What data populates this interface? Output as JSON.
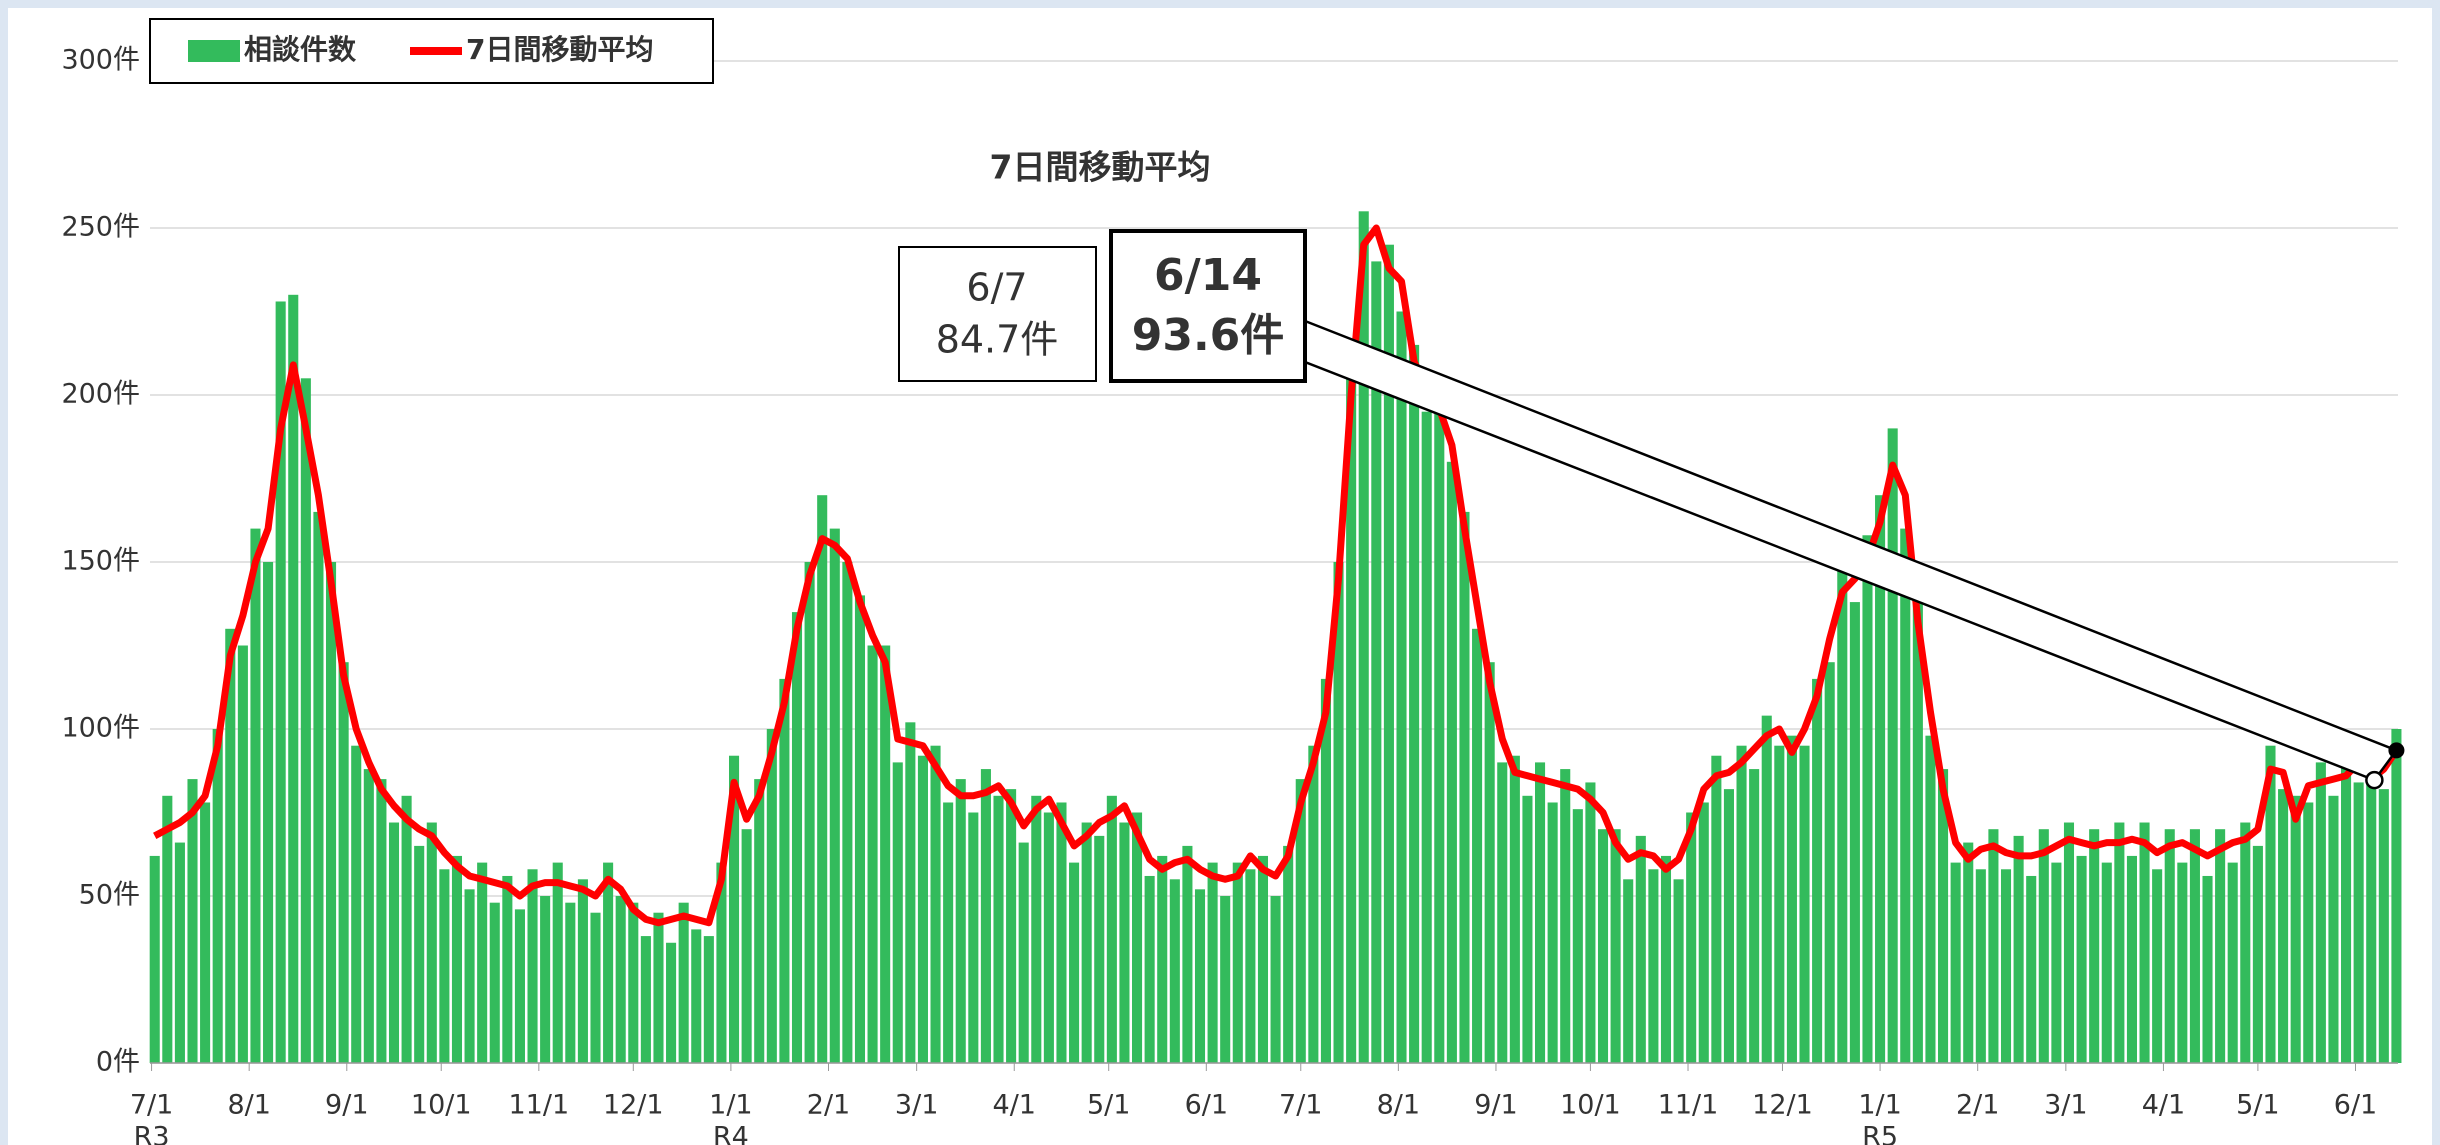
{
  "chart_data": {
    "type": "bar",
    "legend": "top-left",
    "grid": true,
    "x": [
      1,
      5,
      9,
      13,
      17,
      21,
      25,
      29,
      33,
      37,
      41,
      45,
      49,
      53,
      57,
      61,
      65,
      69,
      73,
      77,
      81,
      85,
      89,
      93,
      97,
      101,
      105,
      109,
      113,
      117,
      121,
      125,
      129,
      133,
      137,
      141,
      145,
      149,
      153,
      157,
      161,
      165,
      169,
      173,
      177,
      181,
      185,
      189,
      193,
      197,
      201,
      205,
      209,
      213,
      217,
      221,
      225,
      229,
      233,
      237,
      241,
      245,
      249,
      253,
      257,
      261,
      265,
      269,
      273,
      277,
      281,
      285,
      289,
      293,
      297,
      301,
      305,
      309,
      313,
      317,
      321,
      325,
      329,
      333,
      337,
      341,
      345,
      349,
      353,
      357,
      361,
      365,
      369,
      373,
      377,
      381,
      385,
      389,
      393,
      397,
      401,
      405,
      409,
      413,
      417,
      421,
      425,
      429,
      433,
      437,
      441,
      445,
      449,
      453,
      457,
      461,
      465,
      469,
      473,
      477,
      481,
      485,
      489,
      493,
      497,
      501,
      505,
      509,
      513,
      517,
      521,
      525,
      529,
      533,
      537,
      541,
      545,
      549,
      553,
      557,
      561,
      565,
      569,
      573,
      577,
      581,
      585,
      589,
      593,
      597,
      601,
      605,
      609,
      613,
      617,
      621,
      625,
      629,
      633,
      637,
      641,
      645,
      649,
      653,
      657,
      661,
      665,
      669,
      673,
      677,
      681,
      685,
      689,
      693,
      697,
      701,
      705,
      709,
      713
    ],
    "series": [
      {
        "name": "相談件数",
        "type": "bar",
        "color": "#33bb5c",
        "values": [
          62,
          80,
          66,
          85,
          78,
          100,
          130,
          125,
          160,
          150,
          228,
          230,
          205,
          165,
          150,
          120,
          95,
          88,
          85,
          72,
          80,
          65,
          72,
          58,
          62,
          52,
          60,
          48,
          56,
          46,
          58,
          50,
          60,
          48,
          55,
          45,
          60,
          50,
          48,
          38,
          45,
          36,
          48,
          40,
          38,
          60,
          92,
          70,
          85,
          100,
          115,
          135,
          150,
          170,
          160,
          150,
          140,
          125,
          125,
          90,
          102,
          92,
          95,
          78,
          85,
          75,
          88,
          80,
          82,
          66,
          80,
          75,
          78,
          60,
          72,
          68,
          80,
          72,
          75,
          56,
          62,
          55,
          65,
          52,
          60,
          50,
          60,
          58,
          62,
          50,
          65,
          85,
          95,
          115,
          150,
          215,
          255,
          240,
          245,
          225,
          215,
          195,
          205,
          180,
          165,
          130,
          120,
          90,
          92,
          80,
          90,
          78,
          88,
          76,
          84,
          70,
          70,
          55,
          68,
          58,
          62,
          55,
          75,
          78,
          92,
          82,
          95,
          88,
          104,
          95,
          98,
          95,
          115,
          120,
          148,
          138,
          158,
          170,
          190,
          160,
          138,
          98,
          88,
          60,
          66,
          58,
          70,
          58,
          68,
          56,
          70,
          60,
          72,
          62,
          70,
          60,
          72,
          62,
          72,
          58,
          70,
          60,
          70,
          56,
          70,
          60,
          72,
          65,
          95,
          82,
          80,
          78,
          90,
          80,
          92,
          84,
          95,
          82,
          100
        ]
      },
      {
        "name": "7日間移動平均",
        "type": "line",
        "color": "#ff0000",
        "values": [
          68,
          70,
          72,
          75,
          80,
          95,
          122,
          134,
          150,
          160,
          190,
          209,
          190,
          170,
          144,
          116,
          100,
          90,
          82,
          77,
          73,
          70,
          68,
          63,
          59,
          56,
          55,
          54,
          53,
          50,
          53,
          54,
          54,
          53,
          52,
          50,
          55,
          52,
          46,
          43,
          42,
          43,
          44,
          43,
          42,
          55,
          84,
          73,
          80,
          93,
          108,
          130,
          146,
          157,
          155,
          151,
          138,
          128,
          120,
          97,
          96,
          95,
          89,
          83,
          80,
          80,
          81,
          83,
          78,
          71,
          76,
          79,
          72,
          65,
          68,
          72,
          74,
          77,
          69,
          61,
          58,
          60,
          61,
          58,
          56,
          55,
          56,
          62,
          58,
          56,
          62,
          78,
          90,
          105,
          145,
          200,
          245,
          250,
          238,
          234,
          210,
          202,
          196,
          185,
          160,
          137,
          114,
          97,
          87,
          86,
          85,
          84,
          83,
          82,
          79,
          75,
          66,
          61,
          63,
          62,
          58,
          61,
          70,
          82,
          86,
          87,
          90,
          94,
          98,
          100,
          93,
          100,
          110,
          127,
          141,
          145,
          151,
          162,
          179,
          170,
          132,
          105,
          82,
          66,
          61,
          64,
          65,
          63,
          62,
          62,
          63,
          65,
          67,
          66,
          65,
          66,
          66,
          67,
          66,
          63,
          65,
          66,
          64,
          62,
          64,
          66,
          67,
          70,
          88,
          87,
          73,
          83,
          84,
          85,
          86,
          90,
          85,
          88,
          93.6
        ]
      }
    ],
    "xlim": [
      -0.5,
      713.5
    ],
    "xticks": [
      {
        "value": 0,
        "label": "7/1"
      },
      {
        "value": 31,
        "label": "8/1"
      },
      {
        "value": 62,
        "label": "9/1"
      },
      {
        "value": 92,
        "label": "10/1"
      },
      {
        "value": 123,
        "label": "11/1"
      },
      {
        "value": 153,
        "label": "12/1"
      },
      {
        "value": 184,
        "label": "1/1"
      },
      {
        "value": 215,
        "label": "2/1"
      },
      {
        "value": 243,
        "label": "3/1"
      },
      {
        "value": 274,
        "label": "4/1"
      },
      {
        "value": 304,
        "label": "5/1"
      },
      {
        "value": 335,
        "label": "6/1"
      },
      {
        "value": 365,
        "label": "7/1"
      },
      {
        "value": 396,
        "label": "8/1"
      },
      {
        "value": 427,
        "label": "9/1"
      },
      {
        "value": 457,
        "label": "10/1"
      },
      {
        "value": 488,
        "label": "11/1"
      },
      {
        "value": 518,
        "label": "12/1"
      },
      {
        "value": 549,
        "label": "1/1"
      },
      {
        "value": 580,
        "label": "2/1"
      },
      {
        "value": 608,
        "label": "3/1"
      },
      {
        "value": 639,
        "label": "4/1"
      },
      {
        "value": 669,
        "label": "5/1"
      },
      {
        "value": 700,
        "label": "6/1"
      }
    ],
    "xticks2": [
      {
        "value": 0,
        "label": "R3"
      },
      {
        "value": 184,
        "label": "R4"
      },
      {
        "value": 549,
        "label": "R5"
      }
    ],
    "ylim": [
      0,
      300
    ],
    "yticks": [
      {
        "value": 0,
        "label": "0件"
      },
      {
        "value": 50,
        "label": "50件"
      },
      {
        "value": 100,
        "label": "100件"
      },
      {
        "value": 150,
        "label": "150件"
      },
      {
        "value": 200,
        "label": "200件"
      },
      {
        "value": 250,
        "label": "250件"
      },
      {
        "value": 300,
        "label": "300件"
      }
    ],
    "annotation": {
      "title": "7日間移動平均",
      "points": [
        {
          "date": "6/7",
          "x": 706,
          "value": 84.7,
          "value_label": "84.7件"
        },
        {
          "date": "6/14",
          "x": 713,
          "value": 93.6,
          "value_label": "93.6件"
        }
      ]
    }
  }
}
